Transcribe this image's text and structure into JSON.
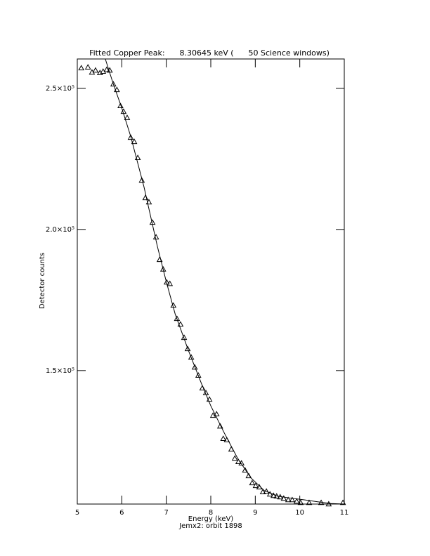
{
  "chart_data": {
    "type": "scatter",
    "title": "Fitted Copper Peak:      8.30645 keV (      50 Science windows)",
    "x_label": "Energy (keV)",
    "subtitle": "Jemx2: orbit 1898",
    "y_label": "Detector counts",
    "xlim": [
      5,
      11
    ],
    "ylim": [
      102700,
      260400
    ],
    "xticks": [
      5,
      6,
      7,
      8,
      9,
      10,
      11
    ],
    "yticks": [
      {
        "value": 150000,
        "label": "1.5×10⁵"
      },
      {
        "value": 200000,
        "label": "2.0×10⁵"
      },
      {
        "value": 250000,
        "label": "2.5×10⁵"
      }
    ],
    "series": [
      {
        "type": "scatter",
        "marker": "triangle",
        "color": "#000000",
        "x": [
          5.09,
          5.24,
          5.33,
          5.41,
          5.51,
          5.58,
          5.66,
          5.73,
          5.81,
          5.89,
          5.97,
          6.04,
          6.12,
          6.2,
          6.28,
          6.36,
          6.45,
          6.53,
          6.61,
          6.69,
          6.77,
          6.85,
          6.93,
          7.01,
          7.08,
          7.16,
          7.24,
          7.32,
          7.4,
          7.48,
          7.56,
          7.64,
          7.72,
          7.81,
          7.89,
          7.97,
          8.05,
          8.13,
          8.21,
          8.28,
          8.36,
          8.46,
          8.54,
          8.62,
          8.69,
          8.77,
          8.85,
          8.93,
          9.01,
          9.09,
          9.17,
          9.25,
          9.33,
          9.41,
          9.48,
          9.56,
          9.64,
          9.74,
          9.83,
          9.93,
          10.02,
          10.21,
          10.48,
          10.65,
          10.97
        ],
        "values": [
          257200,
          257500,
          255700,
          256400,
          255500,
          256000,
          256600,
          256400,
          251500,
          249500,
          243800,
          241800,
          239600,
          232600,
          231100,
          225400,
          217400,
          211200,
          209700,
          202500,
          197300,
          189300,
          185900,
          181300,
          180800,
          173100,
          168400,
          166400,
          161700,
          157700,
          154700,
          151200,
          148300,
          143800,
          142100,
          139800,
          134100,
          134600,
          130300,
          125900,
          125400,
          122100,
          118900,
          117700,
          117200,
          114700,
          112700,
          110200,
          109200,
          108700,
          107000,
          107200,
          106200,
          105700,
          105500,
          105200,
          104700,
          104200,
          104200,
          103700,
          103200,
          103200,
          103200,
          102700,
          103200
        ]
      },
      {
        "type": "line",
        "color": "#000000",
        "x": [
          5.63,
          5.8,
          6.0,
          6.2,
          6.5,
          6.8,
          7.0,
          7.2,
          7.5,
          7.8,
          8.0,
          8.3,
          8.6,
          8.9,
          9.2,
          9.5,
          9.8,
          10.1,
          10.4,
          10.7,
          11.0
        ],
        "values": [
          260400,
          252000,
          243000,
          233000,
          215000,
          194000,
          181500,
          170000,
          157000,
          145000,
          137500,
          128000,
          119000,
          112000,
          107500,
          105500,
          104800,
          104200,
          103500,
          102900,
          102700
        ]
      }
    ]
  }
}
